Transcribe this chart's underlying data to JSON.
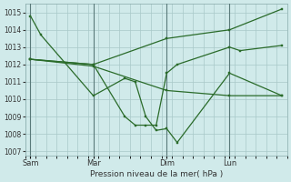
{
  "background_color": "#d0eaea",
  "grid_color": "#a8c8c8",
  "line_color": "#2a6b2a",
  "xlabel": "Pression niveau de la mer( hPa )",
  "ylim": [
    1006.75,
    1015.5
  ],
  "yticks": [
    1007,
    1008,
    1009,
    1010,
    1011,
    1012,
    1013,
    1014,
    1015
  ],
  "xtick_labels": [
    "Sam",
    "Mar",
    "Dim",
    "Lun"
  ],
  "xtick_positions": [
    0,
    6,
    13,
    19
  ],
  "xlim": [
    -0.5,
    24.5
  ],
  "vlines": [
    0,
    6,
    13,
    19
  ],
  "series": [
    {
      "x": [
        0,
        1,
        2,
        3,
        4,
        5,
        6,
        7,
        8,
        9,
        10,
        11,
        12,
        13,
        14,
        15,
        16,
        17,
        18,
        19,
        20,
        21,
        22,
        23,
        24
      ],
      "y": [
        1014.8,
        1013.7,
        null,
        null,
        null,
        null,
        1010.2,
        null,
        null,
        1011.2,
        1011.0,
        1009.0,
        1008.2,
        1008.3,
        1007.5,
        null,
        null,
        null,
        null,
        1011.5,
        null,
        null,
        null,
        null,
        1010.2
      ]
    },
    {
      "x": [
        0,
        1,
        2,
        3,
        4,
        5,
        6,
        7,
        8,
        9,
        10,
        11,
        12,
        13,
        14,
        15,
        16,
        17,
        18,
        19,
        20,
        21,
        22,
        23,
        24
      ],
      "y": [
        1012.3,
        null,
        null,
        null,
        null,
        null,
        1012.0,
        null,
        null,
        1009.0,
        1008.5,
        1008.5,
        1008.5,
        1011.5,
        1012.0,
        null,
        null,
        null,
        null,
        1013.0,
        1012.8,
        null,
        null,
        null,
        1013.1
      ]
    },
    {
      "x": [
        0,
        6,
        13,
        19,
        24
      ],
      "y": [
        1012.3,
        1012.0,
        1013.5,
        1014.0,
        1015.2
      ]
    },
    {
      "x": [
        0,
        6,
        13,
        19,
        24
      ],
      "y": [
        1012.3,
        1011.9,
        1010.5,
        1010.2,
        1010.2
      ]
    }
  ]
}
